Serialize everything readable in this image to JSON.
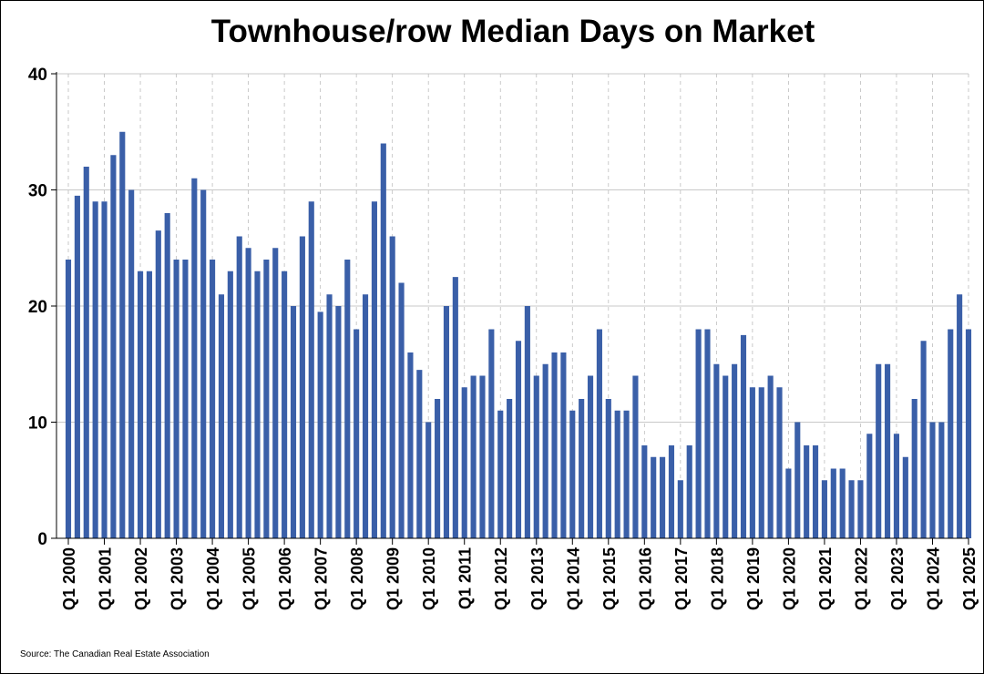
{
  "chart_data": {
    "type": "bar",
    "title": "Townhouse/row Median Days on Market",
    "xlabel": "",
    "ylabel": "",
    "ylim": [
      0,
      40
    ],
    "yticks": [
      0,
      10,
      20,
      30,
      40
    ],
    "grid": true,
    "legend": "none",
    "bar_color": "#3a5fa8",
    "source": "Source: The Canadian Real Estate Association",
    "x_tick_labels": [
      "Q1 2000",
      "Q1 2001",
      "Q1 2002",
      "Q1 2003",
      "Q1 2004",
      "Q1 2005",
      "Q1 2006",
      "Q1 2007",
      "Q1 2008",
      "Q1 2009",
      "Q1 2010",
      "Q1 2011",
      "Q1 2012",
      "Q1 2013",
      "Q1 2014",
      "Q1 2015",
      "Q1 2016",
      "Q1 2017",
      "Q1 2018",
      "Q1 2019",
      "Q1 2020",
      "Q1 2021",
      "Q1 2022",
      "Q1 2023",
      "Q1 2024",
      "Q1 2025"
    ],
    "values": [
      24,
      29.5,
      32,
      29,
      29,
      33,
      35,
      30,
      23,
      23,
      26.5,
      28,
      24,
      24,
      31,
      30,
      24,
      21,
      23,
      26,
      25,
      23,
      24,
      25,
      23,
      20,
      26,
      29,
      19.5,
      21,
      20,
      24,
      18,
      21,
      29,
      34,
      26,
      22,
      16,
      14.5,
      10,
      12,
      20,
      22.5,
      13,
      14,
      14,
      18,
      11,
      12,
      17,
      20,
      14,
      15,
      16,
      16,
      11,
      12,
      14,
      18,
      12,
      11,
      11,
      14,
      8,
      7,
      7,
      8,
      5,
      8,
      18,
      18,
      15,
      14,
      15,
      17.5,
      13,
      13,
      14,
      13,
      6,
      10,
      8,
      8,
      5,
      6,
      6,
      5,
      5,
      9,
      15,
      15,
      9,
      7,
      12,
      17,
      10,
      10,
      18,
      21,
      18
    ]
  }
}
